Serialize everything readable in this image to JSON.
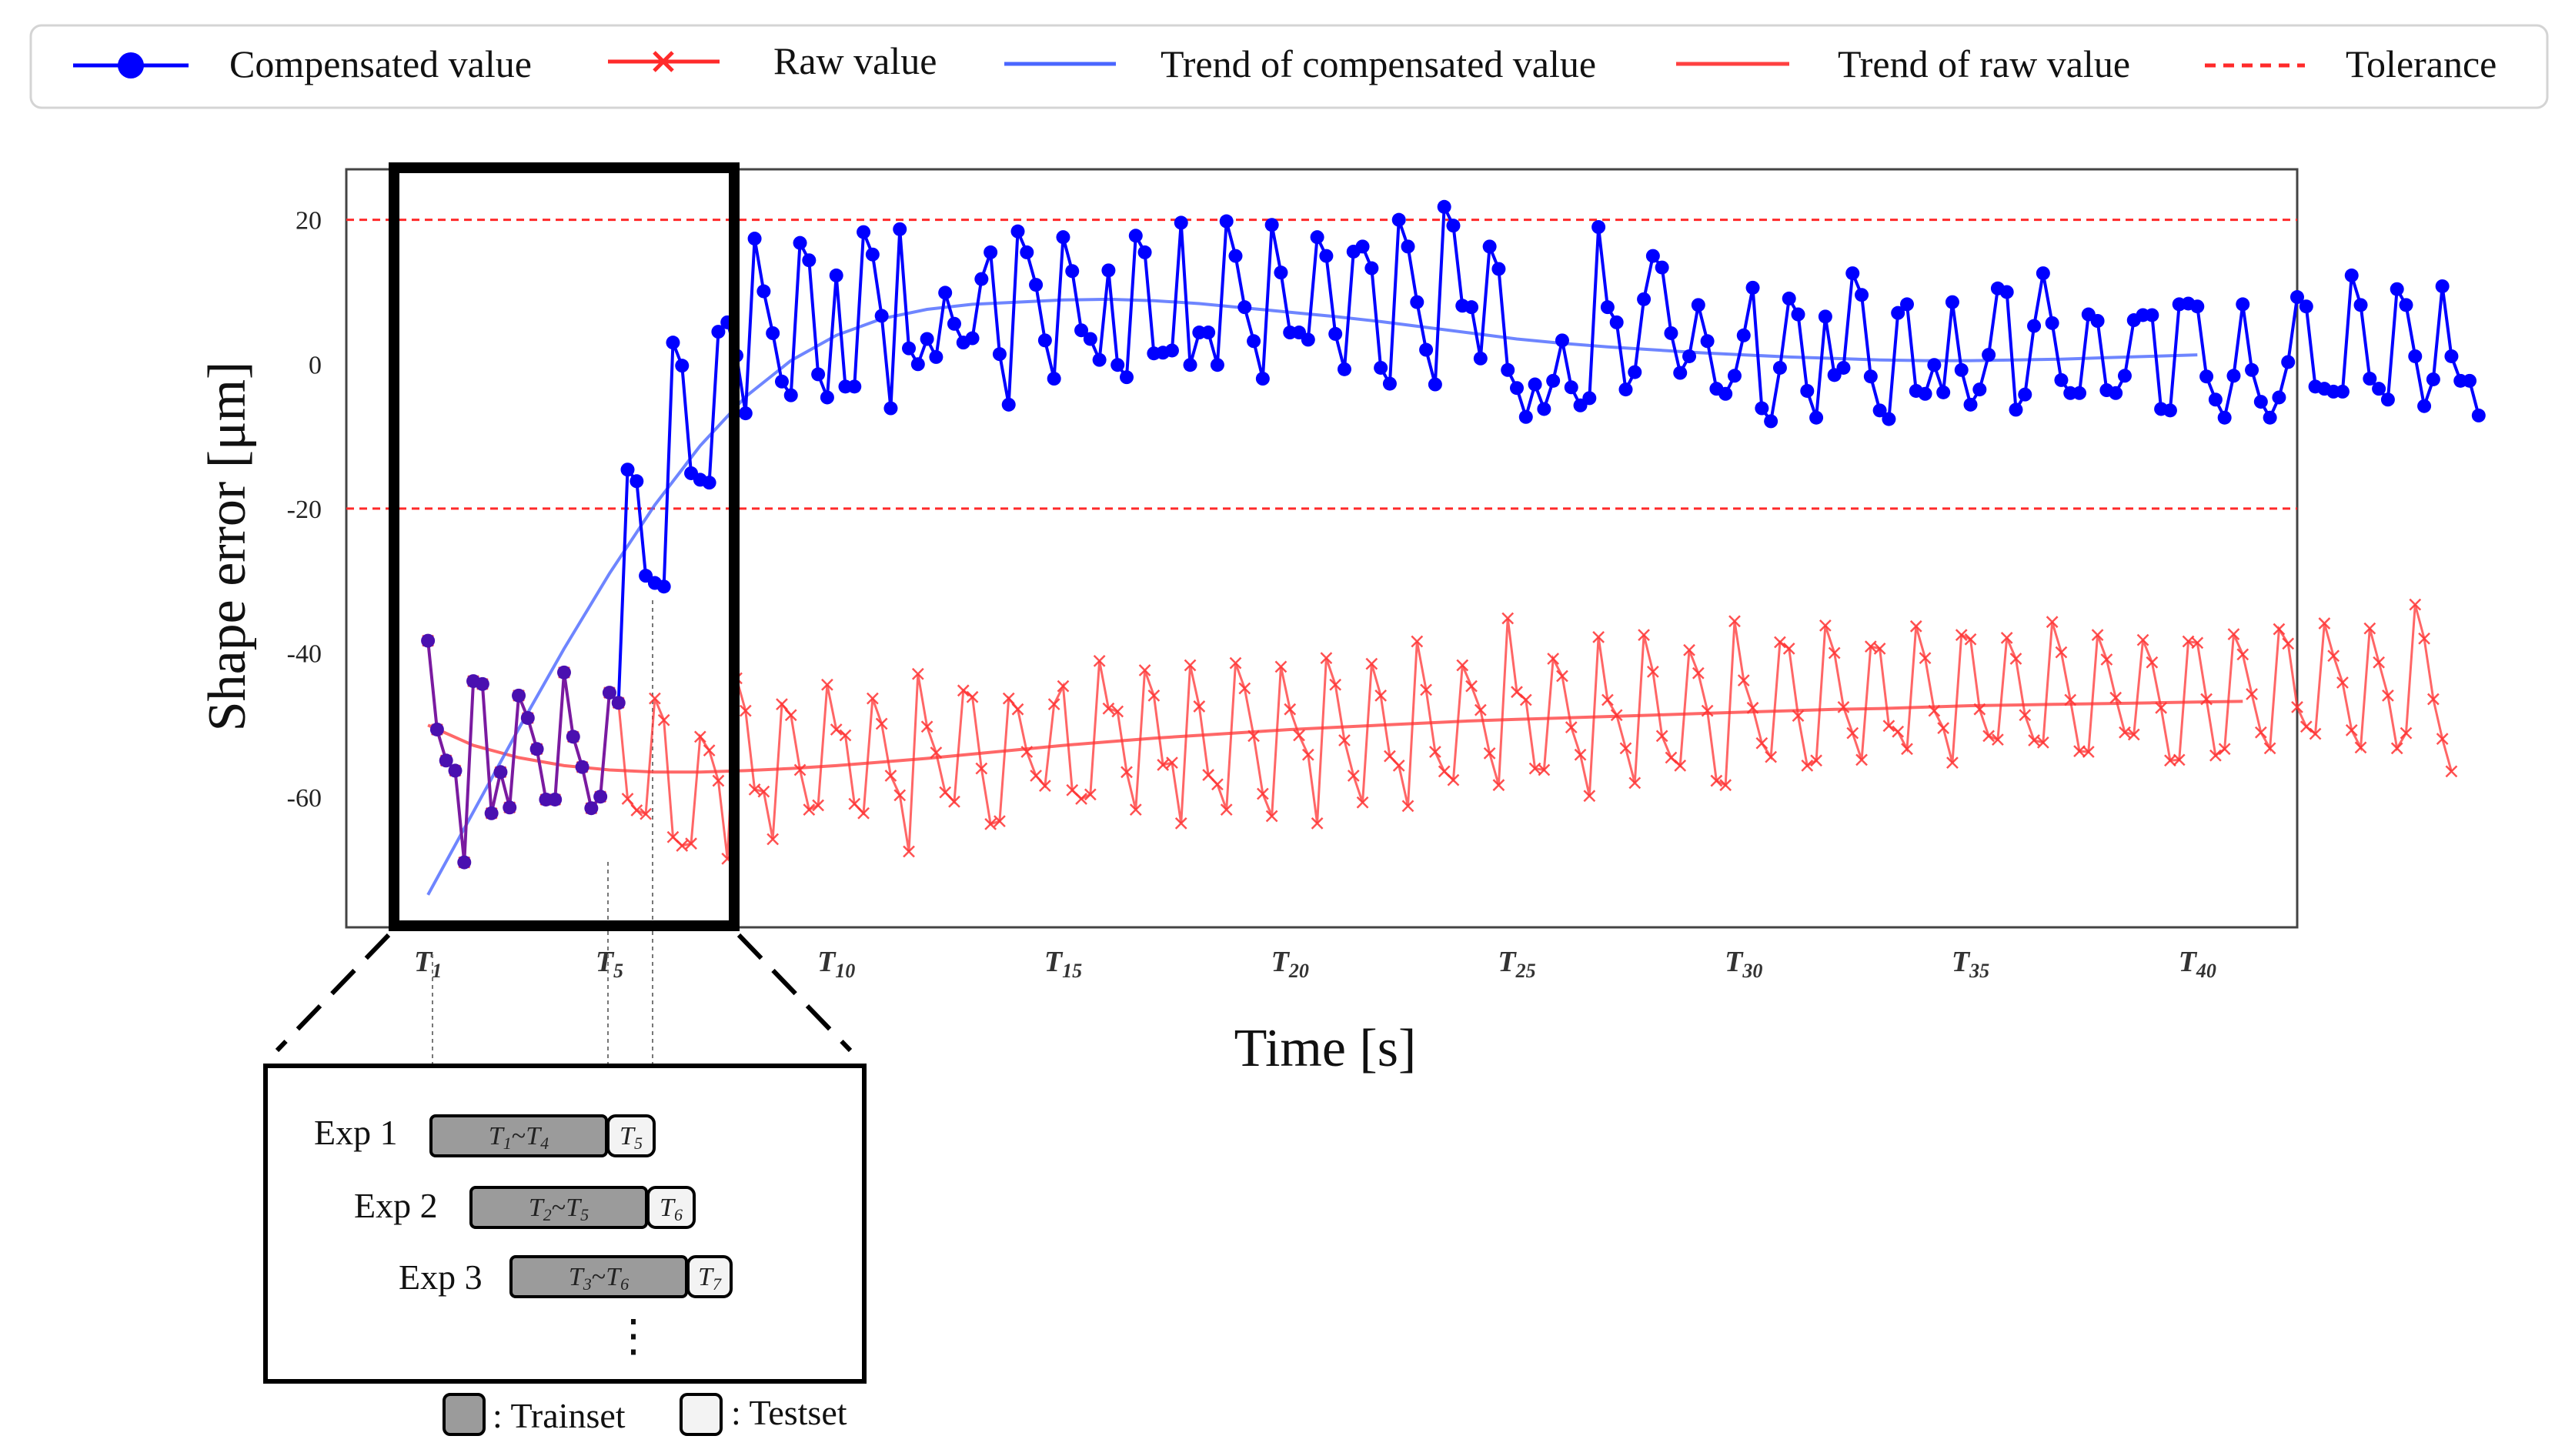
{
  "legend": {
    "items": [
      {
        "label": "Compensated value",
        "marker": "circle-line",
        "color": "#0000ff"
      },
      {
        "label": "Raw value",
        "marker": "x-line",
        "color": "#ff2a2a"
      },
      {
        "label": "Trend of compensated value",
        "marker": "line",
        "color": "#4a66ff"
      },
      {
        "label": "Trend of raw value",
        "marker": "line",
        "color": "#ff4040"
      },
      {
        "label": "Tolerance",
        "marker": "dashed-line",
        "color": "#ff2a2a"
      }
    ]
  },
  "chart_data": {
    "type": "line",
    "ylabel": "Shape error [μm]",
    "xlabel": "Time [s]",
    "ylim": [
      -78,
      27
    ],
    "xlim": [
      -0.8,
      42.2
    ],
    "yticks": [
      20,
      0,
      -20,
      -40,
      -60
    ],
    "xticks": [
      {
        "x": 1,
        "sub": "1"
      },
      {
        "x": 5,
        "sub": "5"
      },
      {
        "x": 10,
        "sub": "10"
      },
      {
        "x": 15,
        "sub": "15"
      },
      {
        "x": 20,
        "sub": "20"
      },
      {
        "x": 25,
        "sub": "25"
      },
      {
        "x": 30,
        "sub": "30"
      },
      {
        "x": 35,
        "sub": "35"
      },
      {
        "x": 40,
        "sub": "40"
      }
    ],
    "tolerance": [
      20,
      -20
    ],
    "colors": {
      "compensated": "#0000ff",
      "raw": "#ff3333",
      "overlap": "#7a1aa0",
      "trend_comp": "#4a66ff",
      "trend_raw": "#ff4d4d",
      "tolerance": "#ff2a2a"
    },
    "series": [
      {
        "name": "Compensated value",
        "x0": 1,
        "dx": 0.2,
        "values": [
          -38.3,
          -50.6,
          -54.9,
          -56.3,
          -69.0,
          -43.9,
          -44.3,
          -62.2,
          -56.5,
          -61.4,
          -45.9,
          -49.0,
          -53.3,
          -60.3,
          -60.3,
          -42.7,
          -51.6,
          -55.8,
          -61.5,
          -59.9,
          -45.5,
          -46.9,
          -14.6,
          -16.2,
          -29.3,
          -30.3,
          -30.8,
          3.0,
          -0.2,
          -15.1,
          -16.0,
          -16.4,
          4.5,
          5.8,
          1.2,
          -6.8,
          17.4,
          10.1,
          4.3,
          -2.4,
          -4.3,
          16.8,
          14.4,
          -1.4,
          -4.6,
          12.3,
          -3.1,
          -3.1,
          18.3,
          15.2,
          6.7,
          -6.1,
          18.7,
          2.2,
          0.0,
          3.5,
          1.0,
          9.9,
          5.6,
          3.0,
          3.6,
          11.8,
          15.5,
          1.4,
          -5.6,
          18.4,
          15.5,
          11.0,
          3.3,
          -2.0,
          17.6,
          12.9,
          4.7,
          3.5,
          0.6,
          13.0,
          -0.1,
          -1.8,
          17.8,
          15.5,
          1.5,
          1.6,
          1.9,
          19.6,
          -0.1,
          4.4,
          4.4,
          -0.1,
          19.8,
          15.0,
          7.9,
          3.2,
          -2.0,
          19.3,
          12.7,
          4.4,
          4.4,
          3.4,
          17.6,
          15.0,
          4.2,
          -0.7,
          15.6,
          16.3,
          13.3,
          -0.5,
          -2.7,
          20.0,
          16.3,
          8.6,
          2.0,
          -2.8,
          21.8,
          19.2,
          8.1,
          7.9,
          0.8,
          16.3,
          13.2,
          -0.8,
          -3.3,
          -7.3,
          -2.8,
          -6.2,
          -2.3,
          3.3,
          -3.2,
          -5.7,
          -4.7,
          19.0,
          7.9,
          5.8,
          -3.5,
          -1.1,
          9.0,
          15.0,
          13.4,
          4.3,
          -1.2,
          1.1,
          8.2,
          3.2,
          -3.4,
          -4.1,
          -1.6,
          4.0,
          10.6,
          -6.1,
          -7.9,
          -0.5,
          9.1,
          6.9,
          -3.7,
          -7.4,
          6.6,
          -1.5,
          -0.5,
          12.6,
          9.6,
          -1.7,
          -6.4,
          -7.6,
          7.1,
          8.3,
          -3.7,
          -4.1,
          -0.1,
          -3.9,
          8.6,
          -0.8,
          -5.6,
          -3.5,
          1.3,
          10.5,
          10.0,
          -6.3,
          -4.2,
          5.3,
          12.6,
          5.7,
          -2.2,
          -4.0,
          -4.0,
          6.9,
          6.0,
          -3.6,
          -4.0,
          -1.6,
          6.1,
          6.8,
          6.8,
          -6.2,
          -6.4,
          8.3,
          8.4,
          8.0,
          -1.7,
          -4.9,
          -7.4,
          -1.6,
          8.3,
          -0.8,
          -5.2,
          -7.4,
          -4.6,
          0.3,
          9.3,
          8.0,
          -3.1,
          -3.4,
          -3.8,
          -3.8,
          12.3,
          8.2,
          -2.0,
          -3.4,
          -4.9,
          10.4,
          8.2,
          1.1,
          -5.8,
          -2.1,
          10.8,
          1.1,
          -2.3,
          -2.3,
          -7.1
        ]
      },
      {
        "name": "Raw value",
        "x0": 1,
        "dx": 0.2,
        "values": [
          -38.3,
          -50.6,
          -54.9,
          -56.3,
          -69.0,
          -43.9,
          -44.3,
          -62.2,
          -56.5,
          -61.4,
          -45.9,
          -49.0,
          -53.3,
          -60.3,
          -60.3,
          -42.7,
          -51.6,
          -55.8,
          -61.5,
          -59.9,
          -45.5,
          -46.9,
          -60.2,
          -61.8,
          -62.3,
          -46.3,
          -49.3,
          -65.5,
          -66.7,
          -66.4,
          -51.6,
          -53.5,
          -57.7,
          -68.5,
          -43.5,
          -48.0,
          -58.9,
          -59.2,
          -65.8,
          -47.1,
          -48.6,
          -56.2,
          -61.7,
          -61.1,
          -44.4,
          -50.6,
          -51.4,
          -60.9,
          -62.2,
          -46.3,
          -49.8,
          -57.0,
          -59.7,
          -67.5,
          -42.9,
          -50.2,
          -53.8,
          -59.3,
          -60.6,
          -45.2,
          -46.1,
          -56.0,
          -63.7,
          -63.3,
          -46.3,
          -47.8,
          -53.7,
          -57.0,
          -58.4,
          -47.1,
          -44.6,
          -59.0,
          -60.2,
          -59.6,
          -41.1,
          -47.7,
          -48.1,
          -56.5,
          -61.7,
          -42.4,
          -45.9,
          -55.5,
          -55.2,
          -63.6,
          -41.7,
          -47.4,
          -56.9,
          -58.2,
          -61.7,
          -41.4,
          -44.9,
          -51.5,
          -59.5,
          -62.6,
          -41.9,
          -47.8,
          -51.4,
          -54.1,
          -63.6,
          -40.7,
          -44.4,
          -52.1,
          -57.0,
          -60.7,
          -41.5,
          -45.9,
          -54.3,
          -55.6,
          -61.2,
          -38.4,
          -45.1,
          -53.7,
          -56.4,
          -57.6,
          -41.7,
          -44.6,
          -47.9,
          -53.9,
          -58.3,
          -35.2,
          -45.4,
          -46.5,
          -56.0,
          -56.2,
          -40.8,
          -43.2,
          -50.3,
          -54.1,
          -59.8,
          -37.8,
          -46.5,
          -48.6,
          -53.2,
          -58.0,
          -37.5,
          -42.6,
          -51.5,
          -54.5,
          -55.6,
          -39.6,
          -42.8,
          -48.0,
          -57.7,
          -58.3,
          -35.6,
          -43.8,
          -47.6,
          -52.5,
          -54.4,
          -38.5,
          -39.4,
          -48.7,
          -55.6,
          -54.9,
          -36.2,
          -40.0,
          -47.5,
          -51.1,
          -54.8,
          -39.1,
          -39.4,
          -50.1,
          -50.9,
          -53.3,
          -36.3,
          -40.7,
          -48.0,
          -50.4,
          -55.2,
          -37.5,
          -38.1,
          -47.8,
          -51.5,
          -52.0,
          -37.9,
          -40.8,
          -48.6,
          -52.1,
          -52.4,
          -35.7,
          -39.9,
          -46.5,
          -53.6,
          -53.7,
          -37.5,
          -40.9,
          -46.2,
          -51.0,
          -51.3,
          -38.2,
          -41.3,
          -47.6,
          -54.9,
          -54.8,
          -38.4,
          -38.6,
          -46.4,
          -54.2,
          -53.3,
          -37.4,
          -40.2,
          -45.7,
          -51.0,
          -53.2,
          -36.7,
          -38.7,
          -47.5,
          -50.2,
          -51.2,
          -35.9,
          -40.4,
          -44.1,
          -50.7,
          -53.1,
          -36.6,
          -41.3,
          -45.9,
          -53.2,
          -51.1,
          -33.3,
          -38.0,
          -46.4,
          -51.9,
          -56.4
        ]
      }
    ],
    "trend_compensated": {
      "x": [
        1,
        2,
        3,
        4,
        5,
        6,
        7,
        8,
        9,
        10,
        11,
        12,
        13,
        14,
        15,
        16,
        17,
        18,
        19,
        20,
        21,
        22,
        23,
        24,
        25,
        26,
        27,
        28,
        29,
        30,
        31,
        32,
        33,
        34,
        35,
        36,
        37,
        38,
        39,
        40
      ],
      "values": [
        -73.5,
        -62,
        -50.5,
        -39.4,
        -29,
        -19.5,
        -11.3,
        -4.5,
        0.5,
        4,
        6.3,
        7.6,
        8.3,
        8.6,
        8.9,
        9,
        8.8,
        8.4,
        7.8,
        7.2,
        6.6,
        5.9,
        5.1,
        4.3,
        3.5,
        2.9,
        2.4,
        2.0,
        1.6,
        1.3,
        1.0,
        0.8,
        0.6,
        0.5,
        0.5,
        0.6,
        0.7,
        0.9,
        1.1,
        1.3
      ]
    },
    "trend_raw": {
      "x": [
        1,
        2,
        3,
        4,
        5,
        6,
        7,
        8,
        9,
        10,
        11,
        12,
        13,
        14,
        15,
        16,
        17,
        18,
        19,
        20,
        21,
        22,
        23,
        24,
        25,
        26,
        27,
        28,
        29,
        30,
        31,
        32,
        33,
        34,
        35,
        36,
        37,
        38,
        39,
        40,
        41
      ],
      "values": [
        -50,
        -52.8,
        -54.5,
        -55.6,
        -56.2,
        -56.5,
        -56.5,
        -56.3,
        -56,
        -55.6,
        -55.1,
        -54.6,
        -54.0,
        -53.4,
        -52.8,
        -52.3,
        -51.8,
        -51.4,
        -51.0,
        -50.6,
        -50.3,
        -50.0,
        -49.7,
        -49.4,
        -49.2,
        -49.0,
        -48.8,
        -48.6,
        -48.4,
        -48.2,
        -48.0,
        -47.8,
        -47.7,
        -47.5,
        -47.3,
        -47.2,
        -47.1,
        -47.0,
        -46.9,
        -46.8,
        -46.7
      ]
    }
  },
  "inset": {
    "experiments": [
      {
        "label": "Exp 1",
        "train_sub_a": "1",
        "train_sub_b": "4",
        "test_sub": "5"
      },
      {
        "label": "Exp 2",
        "train_sub_a": "2",
        "train_sub_b": "5",
        "test_sub": "6"
      },
      {
        "label": "Exp 3",
        "train_sub_a": "3",
        "train_sub_b": "6",
        "test_sub": "7"
      }
    ],
    "ellipsis": "⋮",
    "key_train": ": Trainset",
    "key_test": ": Testset",
    "time_var": "T",
    "tilde": "~"
  }
}
